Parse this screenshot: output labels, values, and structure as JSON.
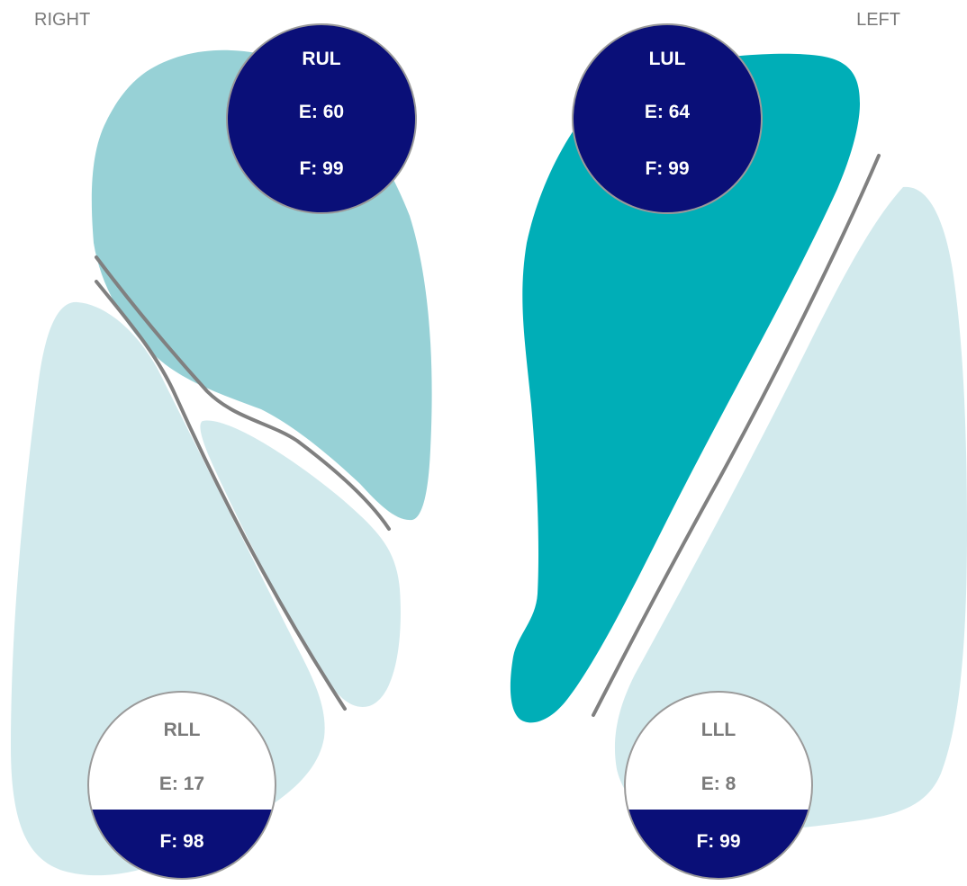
{
  "labels": {
    "right": "RIGHT",
    "left": "LEFT"
  },
  "colors": {
    "upper_light": "#97d1d6",
    "upper_dark": "#00aeb7",
    "lower_pale": "#d2eaed",
    "fissure": "#808080",
    "badge_fill": "#0a0f78",
    "badge_text_light": "#ffffff",
    "badge_text_grey": "#7a7a7a"
  },
  "lobes": [
    {
      "id": "RUL",
      "name": "RUL",
      "E": "E: 60",
      "F": "F: 99"
    },
    {
      "id": "LUL",
      "name": "LUL",
      "E": "E: 64",
      "F": "F: 99"
    },
    {
      "id": "RLL",
      "name": "RLL",
      "E": "E: 17",
      "F": "F: 98"
    },
    {
      "id": "LLL",
      "name": "LLL",
      "E": "E: 8",
      "F": "F: 99"
    }
  ]
}
